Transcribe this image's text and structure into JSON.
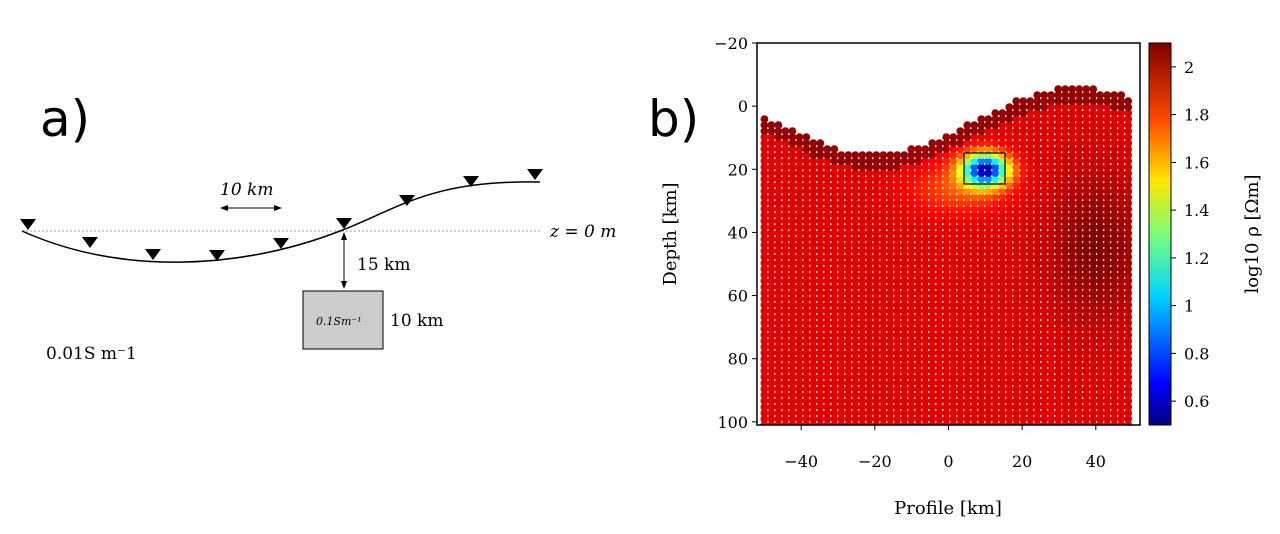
{
  "panel_a": {
    "label": "a)",
    "spacing_label": "10 km",
    "z_label": "z = 0 m",
    "depth_label": "15 km",
    "block_label": "0.1Sm⁻¹",
    "block_size_label": "10 km",
    "background_label": "0.01S m⁻1"
  },
  "panel_b": {
    "label": "b)"
  },
  "chart_data": {
    "type": "scatter",
    "xlabel": "Profile [km]",
    "ylabel": "Depth [km]",
    "xlim": [
      -52,
      52
    ],
    "ylim": [
      -20,
      101
    ],
    "y_inverted": true,
    "x_ticks": [
      "−40",
      "−20",
      "0",
      "20",
      "40"
    ],
    "y_ticks": [
      "−20",
      "0",
      "20",
      "40",
      "60",
      "80",
      "100"
    ],
    "colorbar": {
      "label": "log10 ρ [Ωm]",
      "range": [
        0.5,
        2.1
      ],
      "ticks": [
        "2",
        "1.8",
        "1.6",
        "1.4",
        "1.2",
        "1",
        "0.8",
        "0.6"
      ]
    },
    "anomaly_box": {
      "x": [
        5,
        15
      ],
      "y": [
        15,
        25
      ]
    },
    "colors": {
      "conductor": "#1a4de0",
      "background": "#d42a14"
    }
  }
}
